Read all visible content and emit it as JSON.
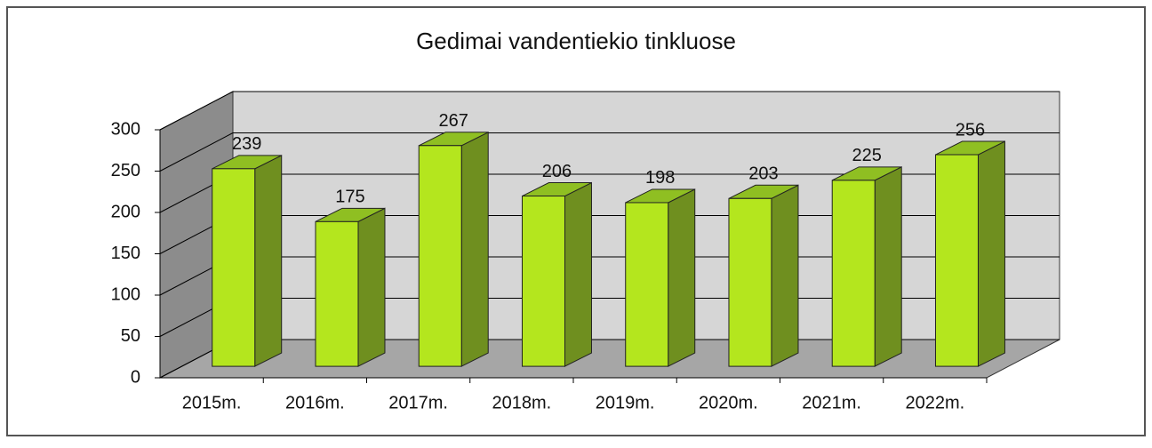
{
  "chart_data": {
    "type": "bar",
    "title": "Gedimai vandentiekio tinkluose",
    "categories": [
      "2015m.",
      "2016m.",
      "2017m.",
      "2018m.",
      "2019m.",
      "2020m.",
      "2021m.",
      "2022m."
    ],
    "values": [
      239,
      175,
      267,
      206,
      198,
      203,
      225,
      256
    ],
    "color": "#b4e61e",
    "ylim": [
      0,
      300
    ],
    "yticks": [
      0,
      50,
      100,
      150,
      200,
      250,
      300
    ],
    "grid": true
  }
}
